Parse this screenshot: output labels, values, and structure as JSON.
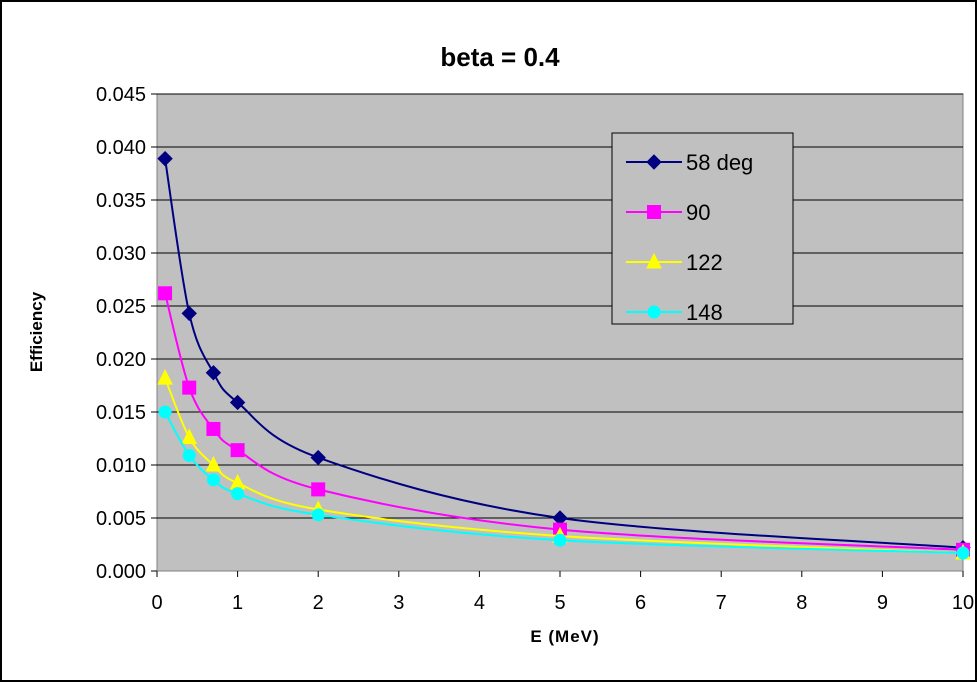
{
  "chart_data": {
    "type": "line",
    "title": "beta = 0.4",
    "xlabel": "E (MeV)",
    "ylabel": "Efficiency",
    "xlim": [
      0,
      10
    ],
    "ylim": [
      0,
      0.045
    ],
    "x_ticks": [
      "0",
      "1",
      "2",
      "3",
      "4",
      "5",
      "6",
      "7",
      "8",
      "9",
      "10"
    ],
    "y_ticks": [
      "0.000",
      "0.005",
      "0.010",
      "0.015",
      "0.020",
      "0.025",
      "0.030",
      "0.035",
      "0.040",
      "0.045"
    ],
    "grid": "horizontal",
    "legend_position": "top-right",
    "x": [
      0.1,
      0.4,
      0.7,
      1,
      2,
      5,
      10
    ],
    "series": [
      {
        "name": "58 deg",
        "color": "#000080",
        "marker": "diamond",
        "values": [
          0.0389,
          0.0243,
          0.0187,
          0.0159,
          0.0107,
          0.005,
          0.0022
        ]
      },
      {
        "name": "90",
        "color": "#FF00FF",
        "marker": "square",
        "values": [
          0.0262,
          0.0173,
          0.0134,
          0.0114,
          0.0077,
          0.0039,
          0.002
        ]
      },
      {
        "name": "122",
        "color": "#FFFF00",
        "marker": "triangle",
        "values": [
          0.0182,
          0.0126,
          0.01,
          0.0083,
          0.0058,
          0.0033,
          0.0017
        ]
      },
      {
        "name": "148",
        "color": "#00FFFF",
        "marker": "circle",
        "values": [
          0.015,
          0.0109,
          0.0086,
          0.0073,
          0.0053,
          0.0029,
          0.0017
        ]
      }
    ],
    "plot_background": "#C0C0C0"
  }
}
